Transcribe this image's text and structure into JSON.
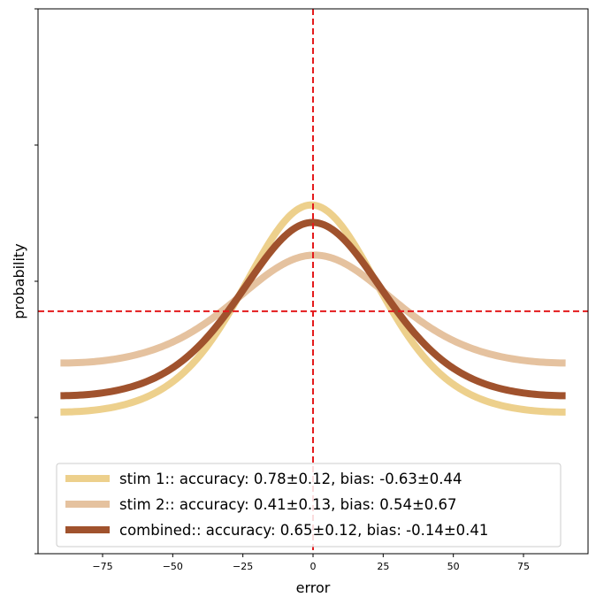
{
  "chart_data": {
    "type": "line",
    "xlabel": "error",
    "ylabel": "probability",
    "xlim": [
      -98,
      98
    ],
    "ylim": [
      0,
      1
    ],
    "xticks": [
      -75,
      -50,
      -25,
      0,
      25,
      50,
      75
    ],
    "xtick_labels": [
      "−75",
      "−50",
      "−25",
      "0",
      "25",
      "50",
      "75"
    ],
    "yticks": [
      0,
      0.25,
      0.5,
      0.75,
      1
    ],
    "grid": false,
    "legend_position": "lower center",
    "reference_lines": {
      "vertical_x": 0,
      "horizontal_y": 0.445,
      "color": "#e41a1c",
      "style": "dashed"
    },
    "series": [
      {
        "name": "stim 1:: accuracy: 0.78±0.12, bias: -0.63±0.44",
        "color": "#edd08c",
        "accuracy": 0.78,
        "bias": -0.63,
        "peak": 0.64,
        "base": 0.26
      },
      {
        "name": "stim 2:: accuracy: 0.41±0.13, bias: 0.54±0.67",
        "color": "#e5c29f",
        "accuracy": 0.41,
        "bias": 0.54,
        "peak": 0.548,
        "base": 0.35
      },
      {
        "name": "combined:: accuracy: 0.65±0.12, bias: -0.14±0.41",
        "color": "#a0522d",
        "accuracy": 0.65,
        "bias": -0.14,
        "peak": 0.608,
        "base": 0.29
      }
    ],
    "x_range": [
      -90,
      90
    ]
  }
}
